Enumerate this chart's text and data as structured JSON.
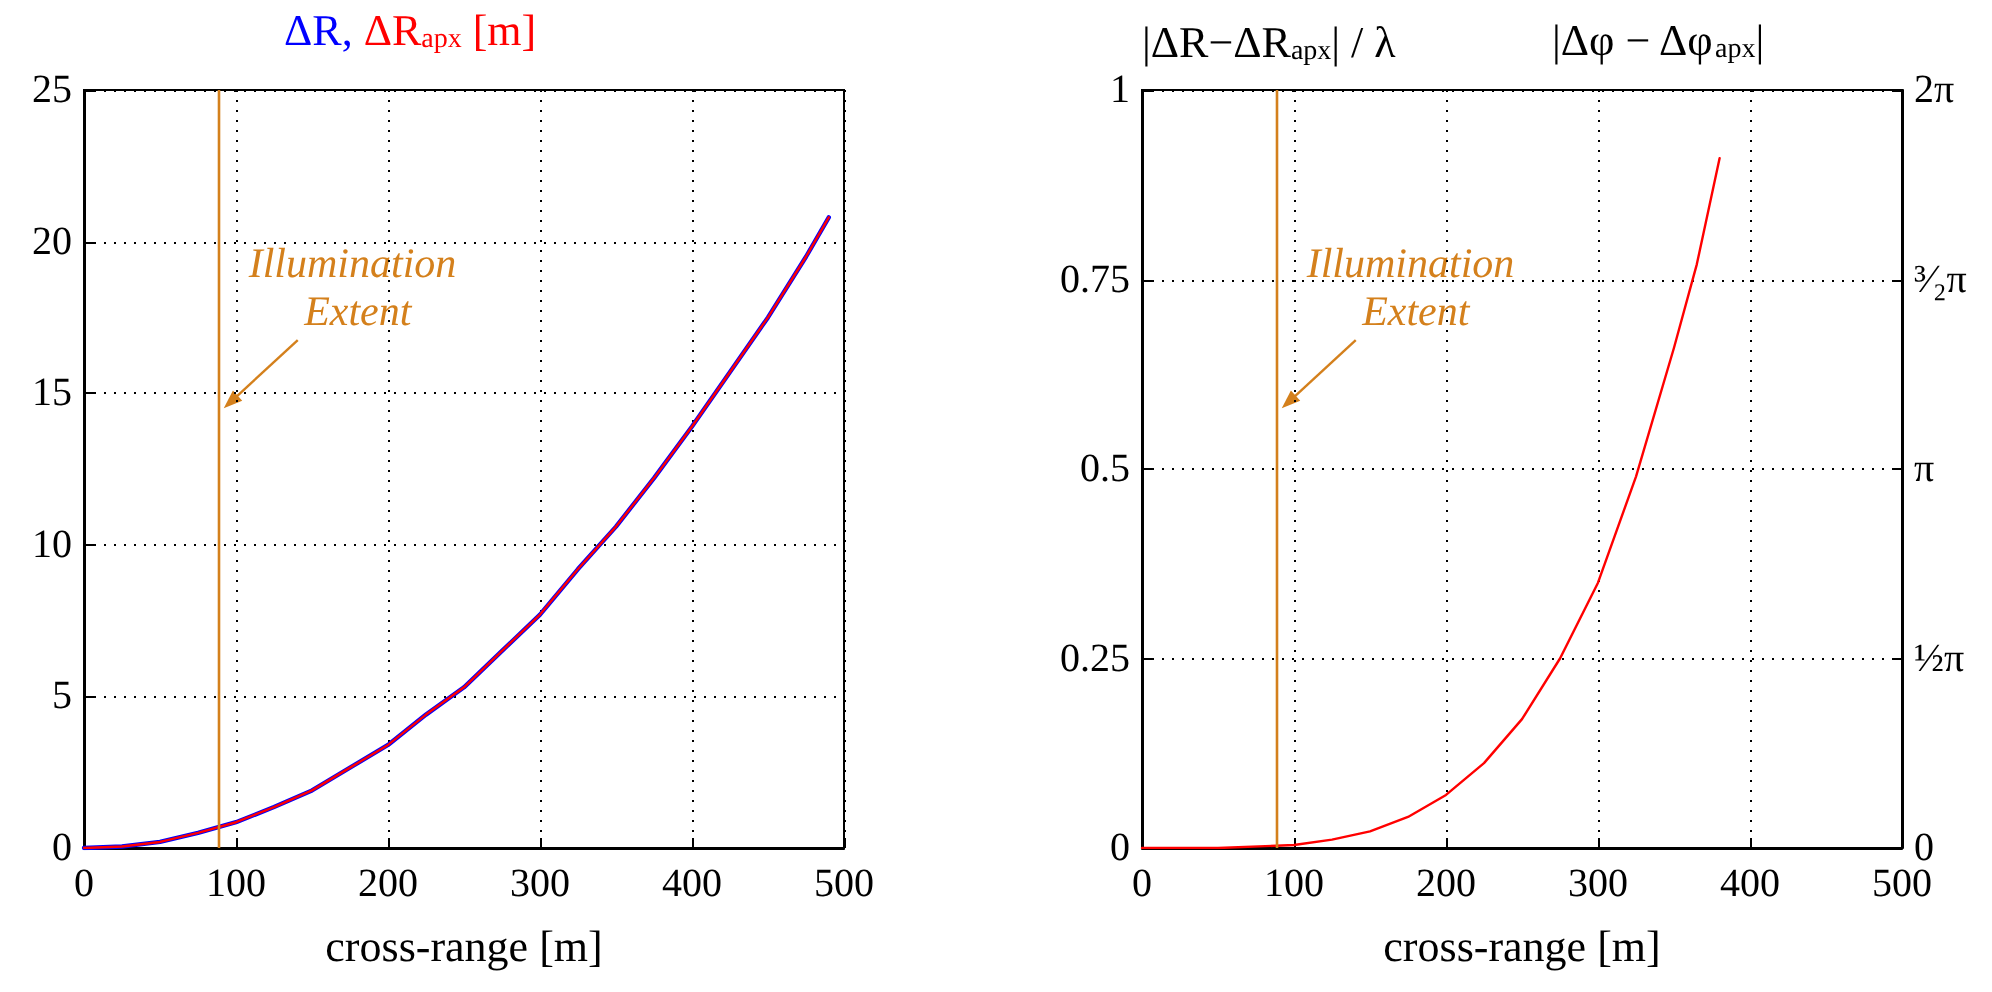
{
  "chart_data": [
    {
      "type": "line",
      "ylabel": "[m]",
      "xlabel": "cross-range [m]",
      "x": [
        0,
        25,
        50,
        75,
        100,
        125,
        150,
        175,
        200,
        225,
        250,
        275,
        300,
        325,
        350,
        375,
        400,
        425,
        450,
        475,
        490
      ],
      "series": [
        {
          "name": "ΔR,",
          "color": "#0000ff",
          "values": [
            0,
            0.05,
            0.2,
            0.5,
            0.85,
            1.35,
            1.9,
            2.65,
            3.4,
            4.4,
            5.3,
            6.5,
            7.7,
            9.2,
            10.6,
            12.2,
            13.9,
            15.7,
            17.5,
            19.5,
            20.8
          ]
        },
        {
          "name": "ΔR$_{apx}$",
          "color": "#ff0000",
          "values": [
            0,
            0.05,
            0.2,
            0.5,
            0.85,
            1.35,
            1.9,
            2.65,
            3.4,
            4.4,
            5.3,
            6.5,
            7.7,
            9.2,
            10.6,
            12.2,
            13.9,
            15.7,
            17.5,
            19.5,
            20.8
          ]
        }
      ],
      "xlim": [
        0,
        500
      ],
      "xticks": [
        0,
        100,
        200,
        300,
        400,
        500
      ],
      "ylim": [
        0,
        25
      ],
      "yticks": [
        0,
        5,
        10,
        15,
        20,
        25
      ],
      "grid": true,
      "ref_lines": [
        {
          "axis": "x",
          "value": 88,
          "label": "Illumination Extent",
          "color": "#d4801c"
        }
      ]
    },
    {
      "type": "line",
      "ylabel": "|ΔR−ΔR$_{apx}$| / λ",
      "y2label": "|Δφ − Δφ$_{apx}$|",
      "xlabel": "cross-range [m]",
      "x": [
        0,
        50,
        100,
        125,
        150,
        175,
        200,
        225,
        250,
        275,
        300,
        325,
        350,
        365,
        380
      ],
      "series": [
        {
          "color": "#ff0000",
          "values": [
            0,
            0,
            0.004,
            0.011,
            0.022,
            0.041,
            0.07,
            0.112,
            0.17,
            0.25,
            0.35,
            0.49,
            0.66,
            0.77,
            0.91
          ]
        }
      ],
      "xlim": [
        0,
        500
      ],
      "xticks": [
        0,
        100,
        200,
        300,
        400,
        500
      ],
      "ylim": [
        0,
        1
      ],
      "yticks": [
        0,
        0.25,
        0.5,
        0.75,
        1
      ],
      "y2lim": [
        0,
        6.2832
      ],
      "y2ticks": [
        {
          "value": 0,
          "label": "0"
        },
        {
          "value": 1.5708,
          "label": "½π"
        },
        {
          "value": 3.1416,
          "label": "π"
        },
        {
          "value": 4.7124,
          "label": "³⁄₂π"
        },
        {
          "value": 6.2832,
          "label": "2π"
        }
      ],
      "grid": true,
      "ref_lines": [
        {
          "axis": "x",
          "value": 88,
          "label": "Illumination Extent",
          "color": "#d4801c"
        }
      ]
    }
  ]
}
